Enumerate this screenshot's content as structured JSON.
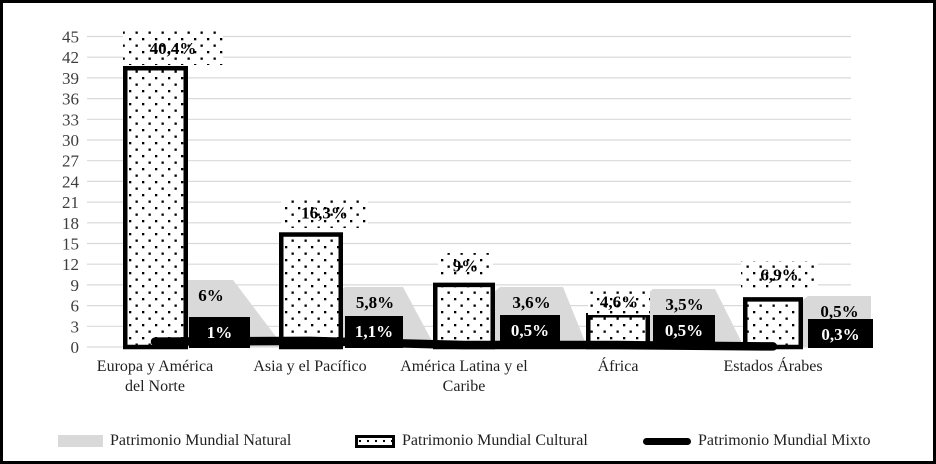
{
  "figure": {
    "background": "#ffffff",
    "border_color": "#000000"
  },
  "chart_data": {
    "type": "bar",
    "title": "",
    "xlabel": "",
    "ylabel": "",
    "categories": [
      "Europa y América\ndel Norte",
      "Asia y el Pacífico",
      "América Latina y el\nCaribe",
      "África",
      "Estados Árabes"
    ],
    "series": [
      {
        "name": "Patrimonio Mundial Natural",
        "render": "area",
        "color": "#d9d9d9",
        "values": [
          6,
          5.8,
          3.6,
          3.5,
          0.5
        ],
        "labels": [
          "6%",
          "5,8%",
          "3,6%",
          "3,5%",
          "0,5%"
        ],
        "label_style": "gray-box-black-text"
      },
      {
        "name": "Patrimonio Mundial Cultural",
        "render": "bar",
        "fill": "dotted-pattern",
        "border_color": "#000000",
        "values": [
          40.4,
          16.3,
          9,
          4.6,
          6.9
        ],
        "labels": [
          "40,4%",
          "16,3%",
          "9%",
          "4,6%",
          "6,9%"
        ],
        "label_style": "dotted-box-black-text"
      },
      {
        "name": "Patrimonio Mundial Mixto",
        "render": "line",
        "color": "#000000",
        "values": [
          1,
          1.1,
          0.5,
          0.5,
          0.3
        ],
        "labels": [
          "1%",
          "1,1%",
          "0,5%",
          "0,5%",
          "0,3%"
        ],
        "label_style": "black-box-white-text"
      }
    ],
    "y_axis": {
      "min": 0,
      "max": 45,
      "step": 3
    },
    "grid": true,
    "gridline_color": "#d9d9d9",
    "axis_text_color": "#3d3d3d",
    "legend_position": "bottom"
  }
}
